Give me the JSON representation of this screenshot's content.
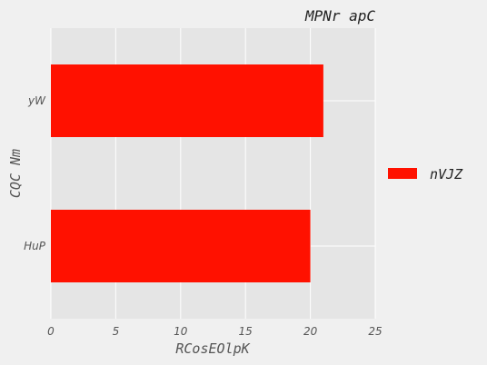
{
  "chart_data": {
    "type": "bar",
    "orientation": "horizontal",
    "title": "MPNr apC",
    "xlabel": "RCosEOlpK",
    "ylabel": "CQC Nm",
    "categories": [
      "yW",
      "HuP"
    ],
    "series": [
      {
        "name": "nVJZ",
        "values": [
          21,
          20
        ],
        "color": "#ff1100"
      }
    ],
    "xlim": [
      0,
      25
    ],
    "xticks": [
      0,
      5,
      10,
      15,
      20,
      25
    ],
    "grid": true,
    "legend_position": "right"
  },
  "colors": {
    "plot_background": "#e5e5e5",
    "page_background": "#f0f0f0",
    "grid": "#ffffff"
  }
}
